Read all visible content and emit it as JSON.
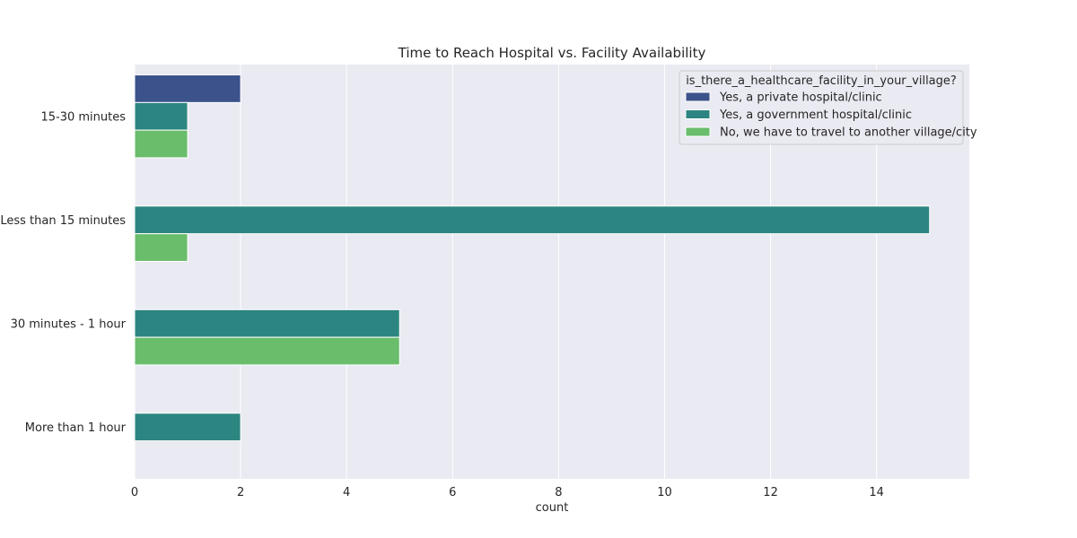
{
  "chart_data": {
    "type": "bar",
    "orientation": "horizontal",
    "title": "Time to Reach Hospital vs. Facility Availability",
    "xlabel": "count",
    "ylabel": "",
    "xlim": [
      0,
      15.75
    ],
    "xticks": [
      0,
      2,
      4,
      6,
      8,
      10,
      12,
      14
    ],
    "grid": true,
    "legend_placement": "top-right",
    "legend_title": "is_there_a_healthcare_facility_in_your_village?",
    "categories": [
      "15-30 minutes",
      "Less than 15 minutes",
      "30 minutes - 1 hour",
      "More than 1 hour"
    ],
    "series": [
      {
        "name": "Yes, a private hospital/clinic",
        "color": "#3b528b",
        "values": [
          2,
          0,
          0,
          0
        ]
      },
      {
        "name": "Yes, a government hospital/clinic",
        "color": "#2c8580",
        "values": [
          1,
          15,
          5,
          2
        ]
      },
      {
        "name": "No, we have to travel to another village/city",
        "color": "#69bd6b",
        "values": [
          1,
          1,
          5,
          0
        ]
      }
    ],
    "background_color": "#eaeaf2"
  }
}
